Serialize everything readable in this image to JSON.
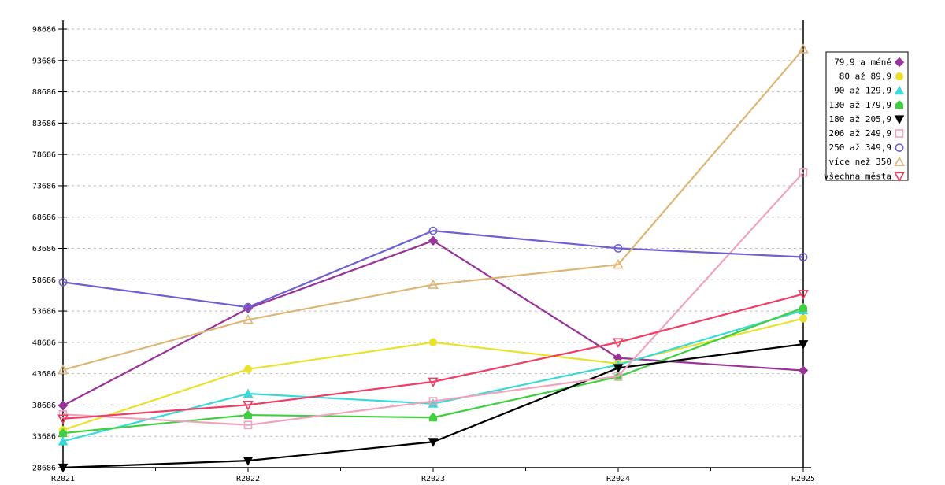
{
  "chart_data": {
    "type": "line",
    "title": "",
    "xlabel": "",
    "ylabel": "",
    "x_labels": [
      "R2021",
      "R2022",
      "R2023",
      "R2024",
      "R2025"
    ],
    "y_axis": {
      "min": 28686,
      "max": 98686,
      "step": 5000,
      "tick_labels": [
        "28686",
        "33686",
        "38686",
        "43686",
        "48686",
        "53686",
        "58686",
        "63686",
        "68686",
        "73686",
        "78686",
        "83686",
        "88686",
        "93686",
        "98686"
      ]
    },
    "grid": true,
    "grid_color": "#bbbbbb",
    "axis_color": "#000000",
    "background": "#ffffff",
    "legend": {
      "position": "top-right",
      "border_color": "#000000",
      "background": "#ffffff"
    },
    "series": [
      {
        "name": "79,9 a méně",
        "color": "#993399",
        "marker": "diamond",
        "marker_style": "filled",
        "values": [
          38600,
          54100,
          64900,
          46200,
          44200
        ]
      },
      {
        "name": "80 až 89,9",
        "color": "#e8e22e",
        "marker": "circle",
        "marker_style": "filled",
        "values": [
          34700,
          44400,
          48700,
          45300,
          52500
        ]
      },
      {
        "name": "90 až 129,9",
        "color": "#3cd9d9",
        "marker": "triangle-up",
        "marker_style": "filled",
        "values": [
          32900,
          40500,
          38900,
          45100,
          53800
        ]
      },
      {
        "name": "130 až 179,9",
        "color": "#41cf41",
        "marker": "house",
        "marker_style": "filled",
        "values": [
          34200,
          37100,
          36700,
          43200,
          54200
        ]
      },
      {
        "name": "180 až 205,9",
        "color": "#000000",
        "marker": "triangle-down",
        "marker_style": "filled",
        "values": [
          28700,
          29800,
          32800,
          44600,
          48400
        ]
      },
      {
        "name": "206 až 249,9",
        "color": "#f0a3bc",
        "marker": "square",
        "marker_style": "open",
        "values": [
          37200,
          35500,
          39300,
          43300,
          75800
        ]
      },
      {
        "name": "250 až 349,9",
        "color": "#6e60d0",
        "marker": "circle",
        "marker_style": "open",
        "values": [
          58300,
          54300,
          66500,
          63700,
          62300
        ]
      },
      {
        "name": "více než 350",
        "color": "#deb577",
        "marker": "triangle-up",
        "marker_style": "open",
        "values": [
          44300,
          52300,
          57900,
          61100,
          95500
        ]
      },
      {
        "name": "všechna města",
        "color": "#ef3d64",
        "marker": "triangle-down",
        "marker_style": "open",
        "values": [
          36500,
          38700,
          42400,
          48700,
          56400
        ]
      }
    ]
  }
}
